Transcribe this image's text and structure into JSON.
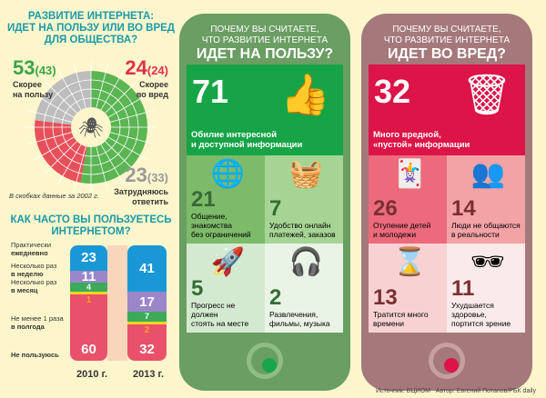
{
  "left": {
    "title": [
      "РАЗВИТИЕ ИНТЕРНЕТА:",
      "ИДЕТ НА ПОЛЬЗУ ИЛИ ВО ВРЕД",
      "ДЛЯ ОБЩЕСТВА?"
    ],
    "good": {
      "value": "53",
      "prev": "(43)",
      "label": [
        "Скорее",
        "на пользу"
      ]
    },
    "bad": {
      "value": "24",
      "prev": "(24)",
      "label": [
        "Скорее",
        "во вред"
      ]
    },
    "unsure": {
      "value": "23",
      "prev": "(33)",
      "label": [
        "Затрудняюсь",
        "ответить"
      ]
    },
    "note": "В скобках данные за 2002 г."
  },
  "chart_data": [
    {
      "type": "pie",
      "title": "РАЗВИТИЕ ИНТЕРНЕТА: ИДЕТ НА ПОЛЬЗУ ИЛИ ВО ВРЕД ДЛЯ ОБЩЕСТВА?",
      "categories": [
        "Скорее на пользу",
        "Скорее во вред",
        "Затрудняюсь ответить"
      ],
      "values": [
        53,
        24,
        23
      ],
      "values_2002": [
        43,
        24,
        33
      ],
      "colors": [
        "#5ab552",
        "#e7505a",
        "#bdbdbd"
      ]
    },
    {
      "type": "bar",
      "stacked": true,
      "title": "КАК ЧАСТО ВЫ ПОЛЬЗУЕТЕСЬ ИНТЕРНЕТОМ?",
      "categories": [
        "2010 г.",
        "2013 г."
      ],
      "series": [
        {
          "name": "Практически ежедневно",
          "values": [
            23,
            41
          ],
          "color": "#1a98d5"
        },
        {
          "name": "Несколько раз в неделю",
          "values": [
            11,
            17
          ],
          "color": "#9a86c8"
        },
        {
          "name": "Несколько раз в месяц",
          "values": [
            4,
            7
          ],
          "color": "#3daa5a"
        },
        {
          "name": "Не менее 1 раза в полгода",
          "values": [
            1,
            2
          ],
          "color": "#f5d523"
        },
        {
          "name": "Не пользуюсь",
          "values": [
            60,
            32
          ],
          "color": "#e9506a"
        }
      ]
    }
  ],
  "freq_title": [
    "КАК ЧАСТО ВЫ ПОЛЬЗУЕТЕСЬ",
    "ИНТЕРНЕТОМ?"
  ],
  "legend": [
    [
      "Практически",
      "ежедневно"
    ],
    [
      "Несколько раз",
      "в неделю"
    ],
    [
      "Несколько раз",
      "в месяц"
    ],
    [
      "Не менее 1 раза",
      "в полгода"
    ],
    [
      "",
      "Не пользуюсь"
    ]
  ],
  "good_phone": {
    "hdr": [
      "ПОЧЕМУ ВЫ СЧИТАЕТЕ,",
      "ЧТО РАЗВИТИЕ ИНТЕРНЕТА",
      "ИДЕТ НА ПОЛЬЗУ?"
    ],
    "items": [
      {
        "n": "71",
        "t": [
          "Обилие интересной",
          "и доступной информации"
        ],
        "icon": "thumbs-up-icon",
        "glyph": "👍"
      },
      {
        "n": "21",
        "t": [
          "Общение, знакомства",
          "без ограничений"
        ],
        "icon": "chat-globe-icon",
        "glyph": "🌐"
      },
      {
        "n": "7",
        "t": [
          "Удобство онлайн",
          "платежей, заказов"
        ],
        "icon": "basket-icon",
        "glyph": "🧺"
      },
      {
        "n": "5",
        "t": [
          "Прогресс не должен",
          "стоять на месте"
        ],
        "icon": "rocket-icon",
        "glyph": "🚀"
      },
      {
        "n": "2",
        "t": [
          "Развлечения,",
          "фильмы, музыка"
        ],
        "icon": "headphones-player-icon",
        "glyph": "🎧"
      }
    ]
  },
  "bad_phone": {
    "hdr": [
      "ПОЧЕМУ ВЫ СЧИТАЕТЕ,",
      "ЧТО РАЗВИТИЕ ИНТЕРНЕТА",
      "ИДЕТ ВО ВРЕД?"
    ],
    "items": [
      {
        "n": "32",
        "t": [
          "Много вредной,",
          "«пустой» информации"
        ],
        "icon": "trash-can-icon",
        "glyph": "🗑"
      },
      {
        "n": "26",
        "t": [
          "Отупение детей",
          "и молодежи"
        ],
        "icon": "jester-hat-icon",
        "glyph": "🃏"
      },
      {
        "n": "14",
        "t": [
          "Люди не общаются",
          "в реальности"
        ],
        "icon": "screen-head-people-icon",
        "glyph": "👥"
      },
      {
        "n": "13",
        "t": [
          "Тратится много",
          "времени"
        ],
        "icon": "hourglass-icon",
        "glyph": "⌛"
      },
      {
        "n": "11",
        "t": [
          "Ухудшается здоровье,",
          "портится зрение"
        ],
        "icon": "glasses-medicine-icon",
        "glyph": "🕶"
      }
    ]
  },
  "source": "Источник: ВЦИОМ",
  "author": "Автор: Евгений Потапов/РБК daily"
}
